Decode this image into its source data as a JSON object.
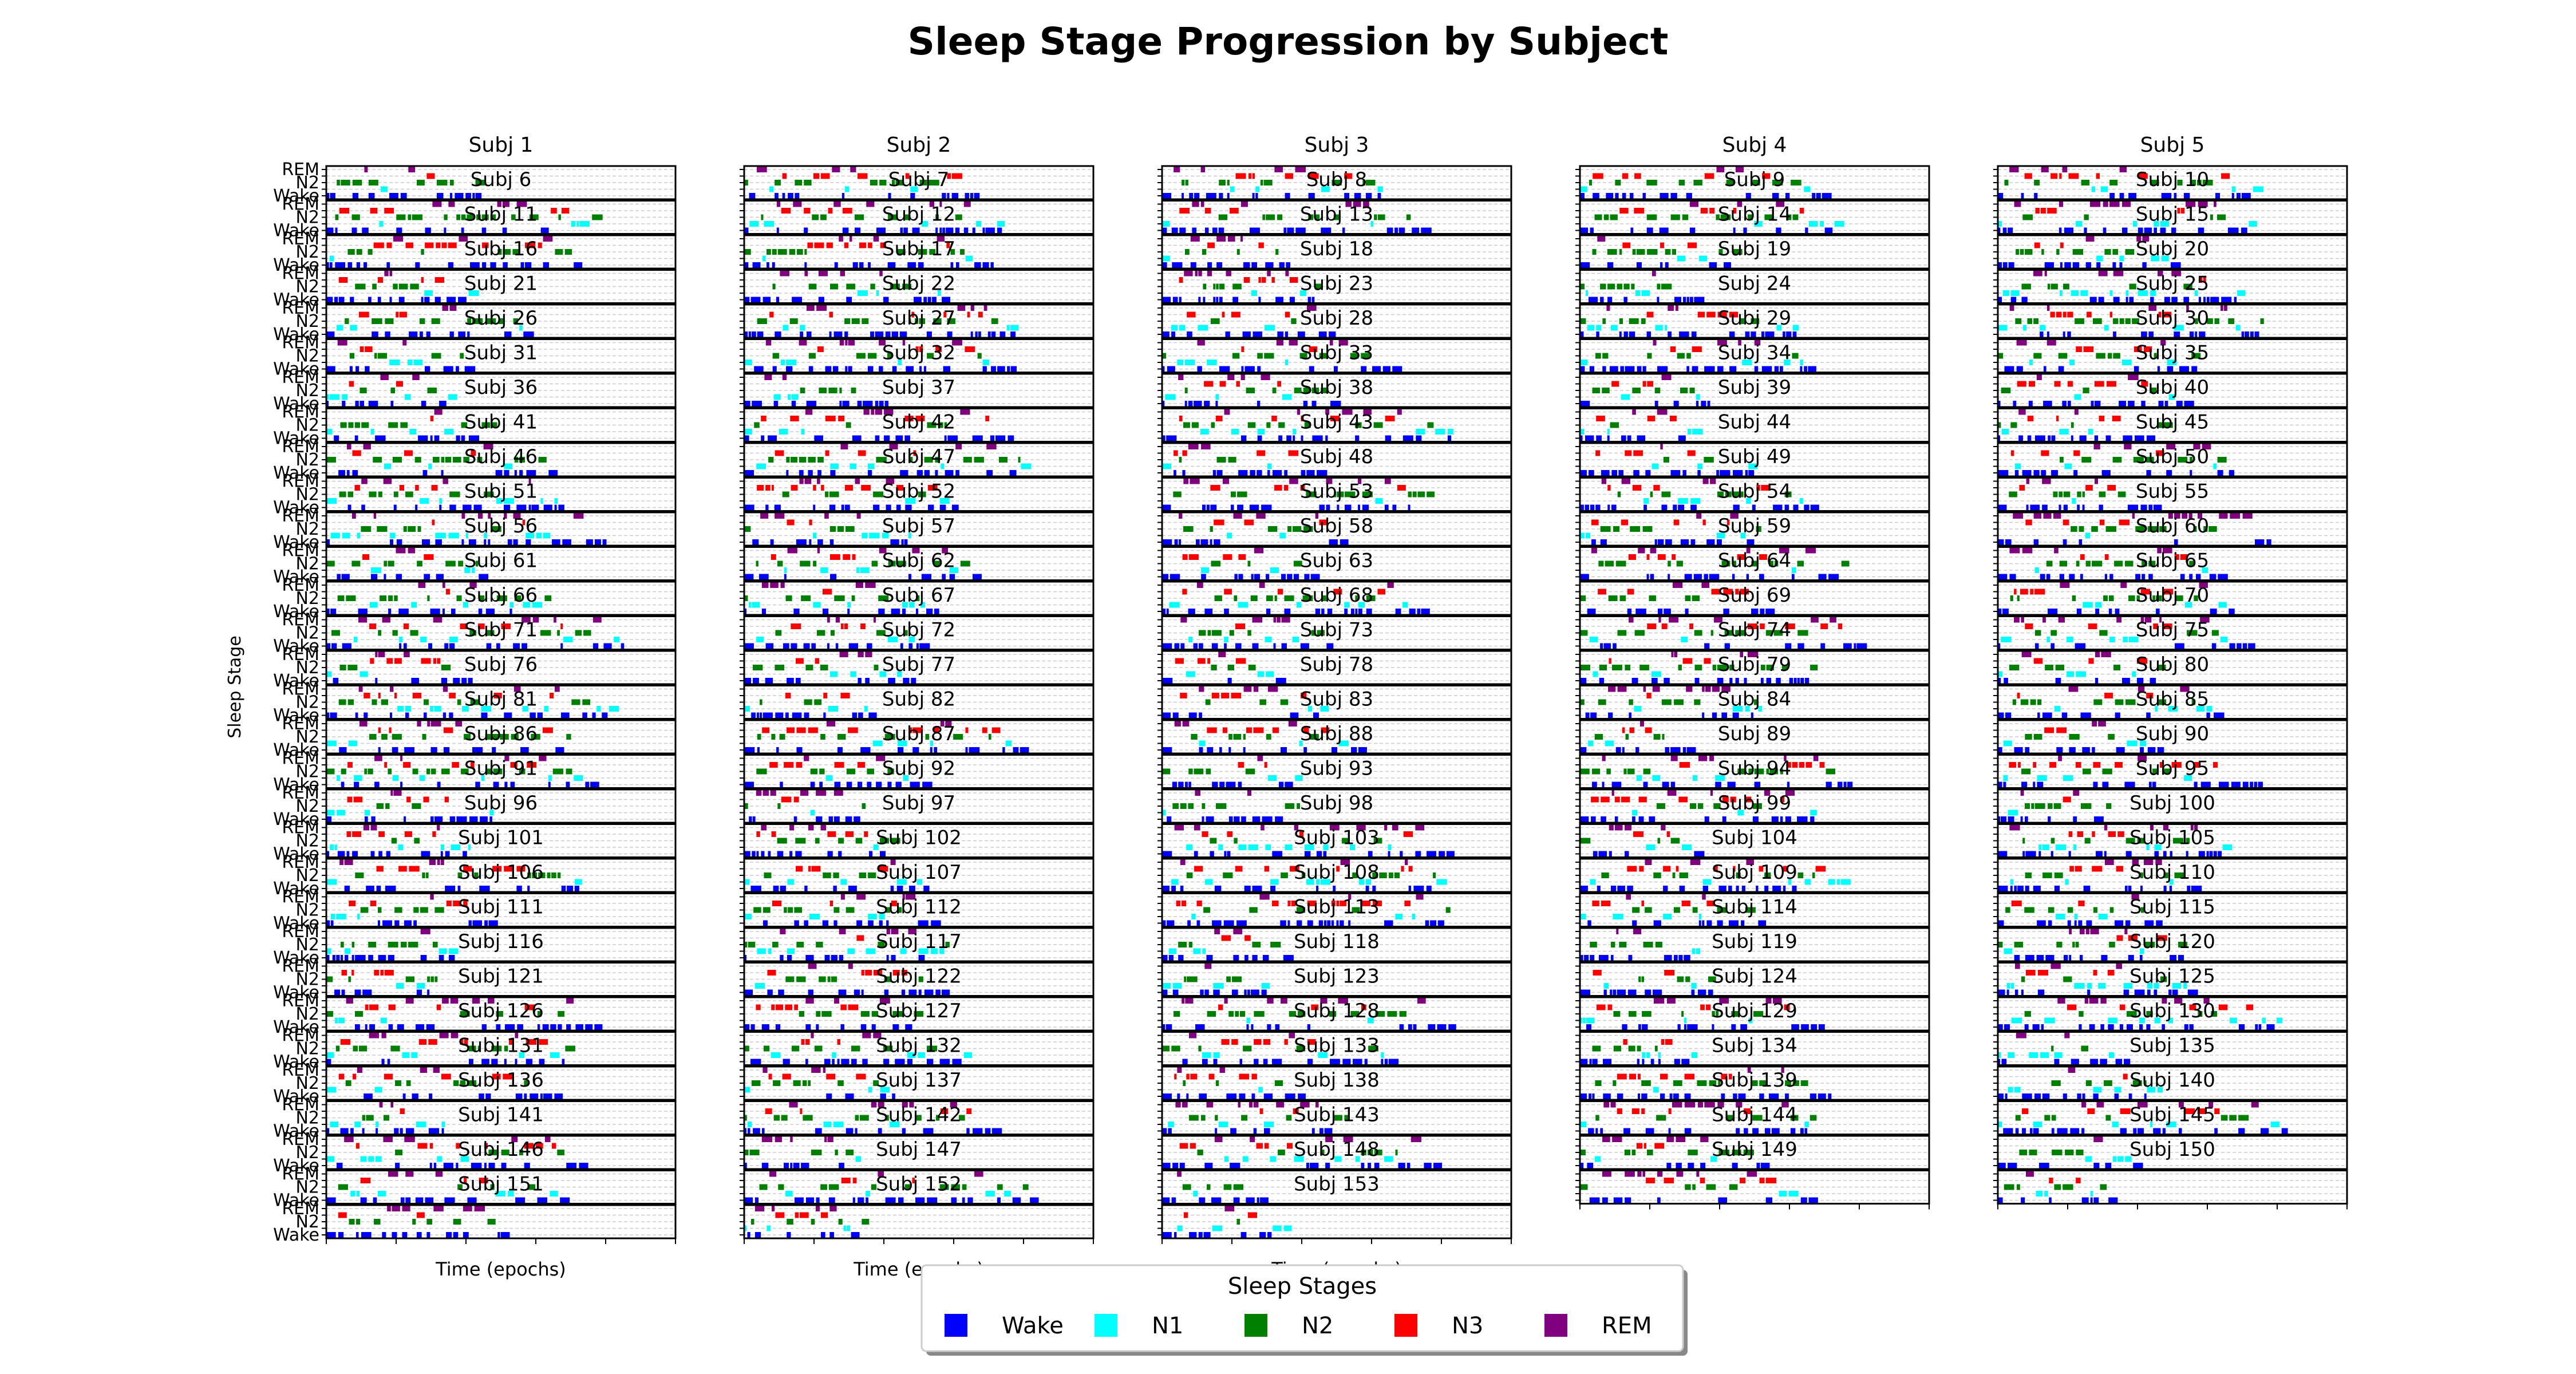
{
  "chart_data": {
    "type": "hypnogram-grid",
    "title": "Sleep Stage Progression by Subject",
    "xlabel": "Time (epochs)",
    "ylabel": "Sleep Stage",
    "y_tick_labels": [
      "Wake",
      "N1",
      "N2",
      "N3",
      "REM"
    ],
    "grid": true,
    "subjects": [
      "Subj 1",
      "Subj 2",
      "Subj 3",
      "Subj 4",
      "Subj 5",
      "Subj 6",
      "Subj 7",
      "Subj 8",
      "Subj 9",
      "Subj 10",
      "Subj 11",
      "Subj 12",
      "Subj 13",
      "Subj 14",
      "Subj 15",
      "Subj 16",
      "Subj 17",
      "Subj 18",
      "Subj 19",
      "Subj 20",
      "Subj 21",
      "Subj 22",
      "Subj 23",
      "Subj 24",
      "Subj 25",
      "Subj 26",
      "Subj 27",
      "Subj 28",
      "Subj 29",
      "Subj 30",
      "Subj 31",
      "Subj 32",
      "Subj 33",
      "Subj 34",
      "Subj 35",
      "Subj 36",
      "Subj 37",
      "Subj 38",
      "Subj 39",
      "Subj 40",
      "Subj 41",
      "Subj 42",
      "Subj 43",
      "Subj 44",
      "Subj 45",
      "Subj 46",
      "Subj 47",
      "Subj 48",
      "Subj 49",
      "Subj 50",
      "Subj 51",
      "Subj 52",
      "Subj 53",
      "Subj 54",
      "Subj 55",
      "Subj 56",
      "Subj 57",
      "Subj 58",
      "Subj 59",
      "Subj 60",
      "Subj 61",
      "Subj 62",
      "Subj 63",
      "Subj 64",
      "Subj 65",
      "Subj 66",
      "Subj 67",
      "Subj 68",
      "Subj 69",
      "Subj 70",
      "Subj 71",
      "Subj 72",
      "Subj 73",
      "Subj 74",
      "Subj 75",
      "Subj 76",
      "Subj 77",
      "Subj 78",
      "Subj 79",
      "Subj 80",
      "Subj 81",
      "Subj 82",
      "Subj 83",
      "Subj 84",
      "Subj 85",
      "Subj 86",
      "Subj 87",
      "Subj 88",
      "Subj 89",
      "Subj 90",
      "Subj 91",
      "Subj 92",
      "Subj 93",
      "Subj 94",
      "Subj 95",
      "Subj 96",
      "Subj 97",
      "Subj 98",
      "Subj 99",
      "Subj 100",
      "Subj 101",
      "Subj 102",
      "Subj 103",
      "Subj 104",
      "Subj 105",
      "Subj 106",
      "Subj 107",
      "Subj 108",
      "Subj 109",
      "Subj 110",
      "Subj 111",
      "Subj 112",
      "Subj 113",
      "Subj 114",
      "Subj 115",
      "Subj 116",
      "Subj 117",
      "Subj 118",
      "Subj 119",
      "Subj 120",
      "Subj 121",
      "Subj 122",
      "Subj 123",
      "Subj 124",
      "Subj 125",
      "Subj 126",
      "Subj 127",
      "Subj 128",
      "Subj 129",
      "Subj 130",
      "Subj 131",
      "Subj 132",
      "Subj 133",
      "Subj 134",
      "Subj 135",
      "Subj 136",
      "Subj 137",
      "Subj 138",
      "Subj 139",
      "Subj 140",
      "Subj 141",
      "Subj 142",
      "Subj 143",
      "Subj 144",
      "Subj 145",
      "Subj 146",
      "Subj 147",
      "Subj 148",
      "Subj 149",
      "Subj 150",
      "Subj 151",
      "Subj 152",
      "Subj 153"
    ],
    "stage_colors": {
      "Wake": "#0000ff",
      "N1": "#00ffff",
      "N2": "#008000",
      "N3": "#ff0000",
      "REM": "#800080"
    },
    "legend": {
      "title": "Sleep Stages",
      "entries": [
        "Wake",
        "N1",
        "N2",
        "N3",
        "REM"
      ],
      "placement": "bottom-center"
    },
    "pattern_seed": 42
  }
}
